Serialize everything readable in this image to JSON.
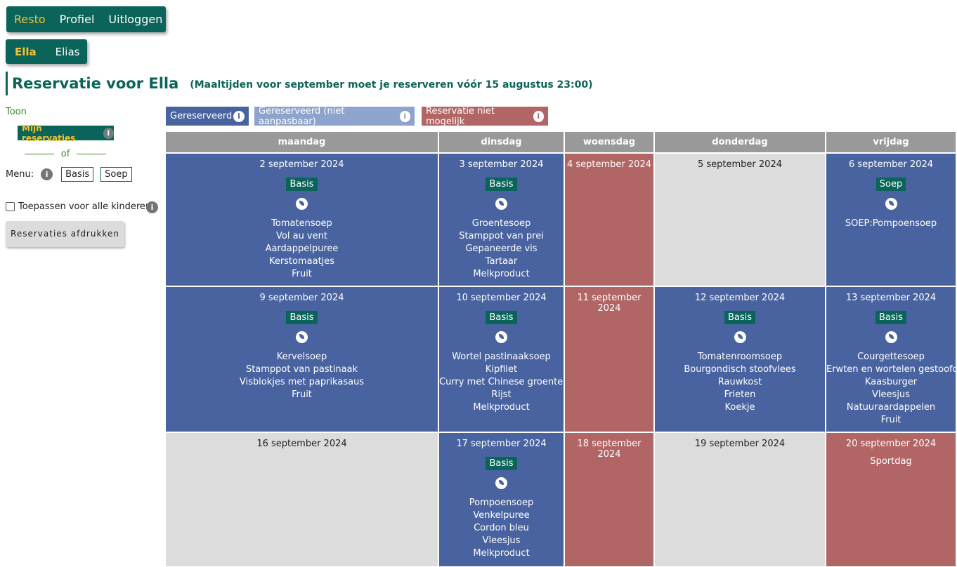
{
  "topnav": {
    "items": [
      "Resto",
      "Profiel",
      "Uitloggen"
    ]
  },
  "kids": {
    "items": [
      "Ella",
      "Elias"
    ]
  },
  "title": "Reservatie voor Ella",
  "deadline_note": "(Maaltijden voor september moet je reserveren vóór 15 augustus 23:00)",
  "filters": {
    "toon": "Toon",
    "mijn": "Mijn reservaties",
    "of": "of",
    "menu_label": "Menu:",
    "menu_basis": "Basis",
    "menu_soep": "Soep"
  },
  "apply_all": "Toepassen voor alle kinderen",
  "print_button": "Reservaties afdrukken",
  "legend": {
    "reserved": "Gereserveerd",
    "reserved_locked": "Gereserveerd (niet aanpasbaar)",
    "not_possible": "Reservatie niet mogelijk",
    "colors": {
      "reserved": "#4863a0",
      "locked": "#8ea4cc",
      "not_possible": "#b26565"
    }
  },
  "days": [
    "maandag",
    "dinsdag",
    "woensdag",
    "donderdag",
    "vrijdag"
  ],
  "weeks": [
    [
      {
        "date": "2 september 2024",
        "state": "blue",
        "badge": "Basis",
        "items": [
          "Tomatensoep",
          "Vol au vent",
          "Aardappelpuree",
          "Kerstomaatjes",
          "Fruit"
        ]
      },
      {
        "date": "3 september 2024",
        "state": "blue",
        "badge": "Basis",
        "items": [
          "Groentesoep",
          "Stamppot van prei",
          "Gepaneerde vis",
          "Tartaar",
          "Melkproduct"
        ]
      },
      {
        "date": "4 september 2024",
        "state": "red"
      },
      {
        "date": "5 september 2024",
        "state": "grey"
      },
      {
        "date": "6 september 2024",
        "state": "blue",
        "badge": "Soep",
        "items": [
          "SOEP:Pompoensoep"
        ]
      }
    ],
    [
      {
        "date": "9 september 2024",
        "state": "blue",
        "badge": "Basis",
        "items": [
          "Kervelsoep",
          "Stamppot van pastinaak",
          "Visblokjes met paprikasaus",
          "Fruit"
        ]
      },
      {
        "date": "10 september 2024",
        "state": "blue",
        "badge": "Basis",
        "items": [
          "Wortel pastinaaksoep",
          "Kipfilet",
          "Curry met Chinese groenten",
          "Rijst",
          "Melkproduct"
        ]
      },
      {
        "date": "11 september 2024",
        "state": "red"
      },
      {
        "date": "12 september 2024",
        "state": "blue",
        "badge": "Basis",
        "items": [
          "Tomatenroomsoep",
          "Bourgondisch stoofvlees",
          "Rauwkost",
          "Frieten",
          "Koekje"
        ]
      },
      {
        "date": "13 september 2024",
        "state": "blue",
        "badge": "Basis",
        "items": [
          "Courgettesoep",
          "Erwten en wortelen gestoofd",
          "Kaasburger",
          "Vleesjus",
          "Natuuraardappelen",
          "Fruit"
        ]
      }
    ],
    [
      {
        "date": "16 september 2024",
        "state": "grey"
      },
      {
        "date": "17 september 2024",
        "state": "blue",
        "badge": "Basis",
        "items": [
          "Pompoensoep",
          "Venkelpuree",
          "Cordon bleu",
          "Vleesjus",
          "Melkproduct"
        ]
      },
      {
        "date": "18 september 2024",
        "state": "red"
      },
      {
        "date": "19 september 2024",
        "state": "grey"
      },
      {
        "date": "20 september 2024",
        "state": "red",
        "note": "Sportdag"
      }
    ]
  ]
}
